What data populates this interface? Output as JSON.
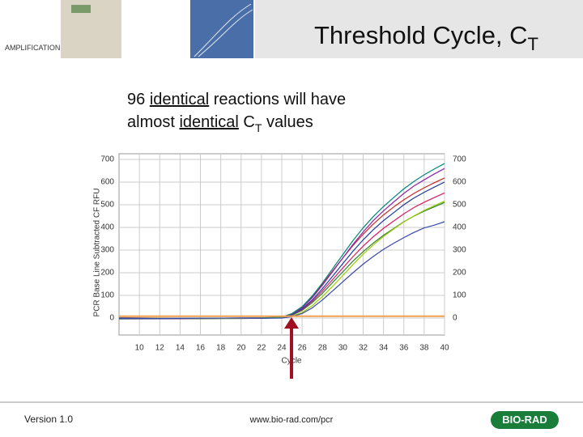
{
  "header": {
    "section": "AMPLIFICATION",
    "title": "Threshold Cycle, C",
    "title_sub": "T"
  },
  "body": {
    "line1": [
      "96 ",
      "identical",
      " reactions will have"
    ],
    "line2": [
      "almost ",
      "identical",
      " C",
      "T",
      " values"
    ]
  },
  "footer": {
    "version": "Version 1.0",
    "url": "www.bio-rad.com/pcr",
    "logo": "BIO-RAD"
  },
  "chart_data": {
    "type": "line",
    "y_label": "PCR Base Line Subtracted CF RFU",
    "x_label": "Cycle",
    "x": [
      8,
      12,
      16,
      20,
      22,
      24,
      25,
      26,
      27,
      28,
      29,
      30,
      31,
      32,
      33,
      34,
      35,
      36,
      37,
      38,
      39,
      40
    ],
    "series": [
      {
        "color": "#2e7d32",
        "values": [
          1,
          -2,
          -3,
          -2,
          -1,
          1,
          12,
          34,
          68,
          110,
          157,
          204,
          251,
          293,
          331,
          365,
          395,
          425,
          450,
          472,
          491,
          510
        ]
      },
      {
        "color": "#d81b60",
        "values": [
          -4,
          -3,
          -1,
          0,
          1,
          3,
          14,
          37,
          74,
          120,
          170,
          221,
          271,
          317,
          359,
          396,
          428,
          460,
          488,
          511,
          532,
          552
        ]
      },
      {
        "color": "#1e3a9e",
        "values": [
          -2,
          -3,
          -2,
          -1,
          0,
          2,
          15,
          40,
          80,
          130,
          185,
          240,
          295,
          345,
          390,
          430,
          465,
          500,
          530,
          555,
          578,
          600
        ]
      },
      {
        "color": "#c62828",
        "values": [
          -1,
          -2,
          -2,
          -1,
          0,
          4,
          20,
          50,
          95,
          150,
          208,
          265,
          320,
          370,
          415,
          455,
          490,
          522,
          550,
          575,
          597,
          618
        ]
      },
      {
        "color": "#8e24aa",
        "values": [
          2,
          0,
          -1,
          -2,
          -1,
          3,
          17,
          45,
          90,
          145,
          205,
          265,
          325,
          380,
          430,
          473,
          512,
          550,
          583,
          610,
          636,
          660
        ]
      },
      {
        "color": "#00897b",
        "values": [
          -3,
          -2,
          -1,
          0,
          1,
          4,
          19,
          50,
          98,
          155,
          218,
          280,
          342,
          398,
          448,
          492,
          532,
          570,
          603,
          632,
          658,
          682
        ]
      },
      {
        "color": "#9ccc00",
        "values": [
          0,
          -1,
          -2,
          -1,
          0,
          1,
          8,
          25,
          55,
          95,
          140,
          188,
          236,
          282,
          323,
          360,
          393,
          424,
          451,
          475,
          496,
          516
        ]
      },
      {
        "color": "#3949ab",
        "values": [
          -1,
          -2,
          -1,
          0,
          -1,
          0,
          6,
          20,
          45,
          80,
          120,
          160,
          200,
          238,
          272,
          303,
          330,
          355,
          378,
          398,
          410,
          425
        ]
      }
    ],
    "threshold": 8,
    "threshold_color": "#f0a050",
    "xlim": [
      8,
      40
    ],
    "xticks": [
      10,
      12,
      14,
      16,
      18,
      20,
      22,
      24,
      26,
      28,
      30,
      32,
      34,
      36,
      38,
      40
    ],
    "ylim": [
      -75,
      725
    ],
    "yticks": [
      0,
      100,
      200,
      300,
      400,
      500,
      600,
      700
    ],
    "grid": true
  }
}
